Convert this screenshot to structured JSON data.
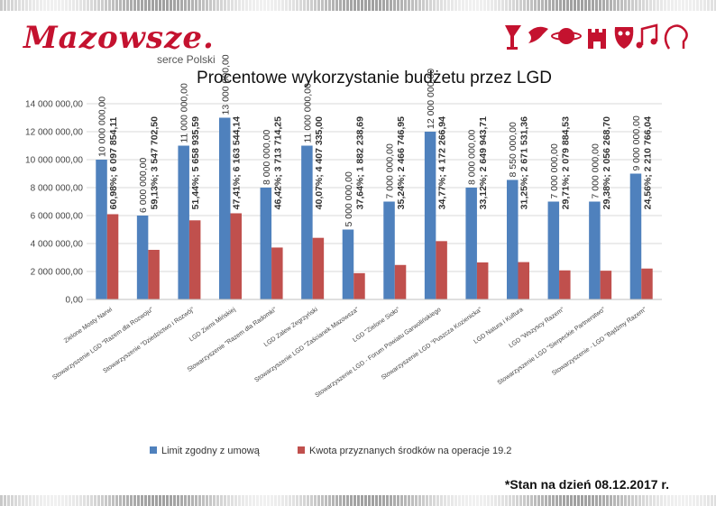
{
  "header": {
    "logo_text": "Mazowsze.",
    "logo_subtitle": "serce Polski",
    "icon_names": [
      "wine-glass-icon",
      "bird-icon",
      "planet-icon",
      "castle-icon",
      "mask-icon",
      "music-notes-icon",
      "profile-icon"
    ]
  },
  "footnote": "*Stan na dzień 08.12.2017 r.",
  "colors": {
    "limit": "#4f81bd",
    "kwota": "#c0504d",
    "brand": "#c4122f"
  },
  "chart_data": {
    "type": "bar",
    "title": "Procentowe wykorzystanie budżetu przez LGD",
    "ylim": [
      0,
      14000000
    ],
    "yticks": [
      0,
      2000000,
      4000000,
      6000000,
      8000000,
      10000000,
      12000000,
      14000000
    ],
    "ytick_labels": [
      "0,00",
      "2 000 000,00",
      "4 000 000,00",
      "6 000 000,00",
      "8 000 000,00",
      "10 000 000,00",
      "12 000 000,00",
      "14 000 000,00"
    ],
    "grid": true,
    "legend_position": "bottom",
    "categories": [
      "Zielone Mosty Narwi",
      "Stowarzyszenie LGD \"Razem dla Rozwoju\"",
      "Stowarzyszenie \"Dziedzictwo i Rozwój\"",
      "LGD Ziemi Mińskiej",
      "Stowarzyszenie \"Razem dla Radomki\"",
      "LGD Zalew Zegrzyński",
      "Stowarzyszenie LGD \"Zaścianek Mazowsza\"",
      "LGD \"Zielone Sioło\"",
      "Stowarzyszenie LGD - Forum Powiatu Garwolińskiego",
      "Stowarzyszenie LGD \"Puszcza Kozienicka\"",
      "LGD Natura i Kultura",
      "LGD \"Wszyscy Razem\"",
      "Stowarzyszenie LGD \"Sierpeckie Partnerstwo\"",
      "Stowarzyszenie - LGD \"Bądźmy Razem\""
    ],
    "series": [
      {
        "name": "Limit zgodny z umową",
        "values": [
          10000000,
          6000000,
          11000000,
          13000000,
          8000000,
          11000000,
          5000000,
          7000000,
          12000000,
          8000000,
          8550000,
          7000000,
          7000000,
          9000000
        ],
        "labels": [
          "10 000 000,00",
          "6 000 000,00",
          "11 000 000,00",
          "13 000 000,00",
          "8 000 000,00",
          "11 000 000,00",
          "5 000 000,00",
          "7 000 000,00",
          "12 000 000,00",
          "8 000 000,00",
          "8 550 000,00",
          "7 000 000,00",
          "7 000 000,00",
          "9 000 000,00"
        ]
      },
      {
        "name": "Kwota przyznanych środków na operacje 19.2",
        "values": [
          6097854.11,
          3547702.5,
          5658935.59,
          6163544.14,
          3713714.25,
          4407335.0,
          1882238.69,
          2466746.95,
          4172266.94,
          2649943.71,
          2671531.36,
          2079884.53,
          2056268.7,
          2210766.04
        ],
        "labels": [
          "60,98%; 6 097 854,11",
          "59,13%; 3 547 702,50",
          "51,44%; 5 658 935,59",
          "47,41%; 6 163 544,14",
          "46,42%; 3 713 714,25",
          "40,07%; 4 407 335,00",
          "37,64%; 1 882 238,69",
          "35,24%; 2 466 746,95",
          "34,77%; 4 172 266,94",
          "33,12%; 2 649 943,71",
          "31,25%; 2 671 531,36",
          "29,71%; 2 079 884,53",
          "29,38%; 2 056 268,70",
          "24,56%; 2 210 766,04"
        ]
      }
    ]
  }
}
